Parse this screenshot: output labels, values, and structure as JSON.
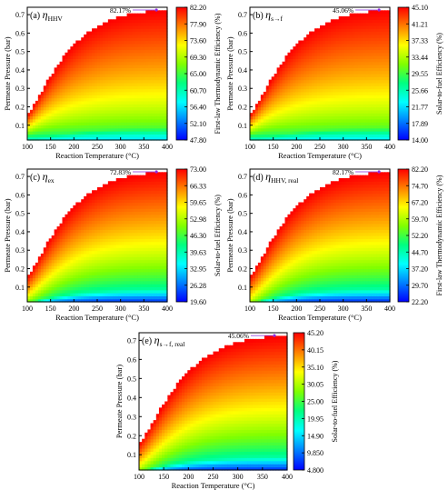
{
  "colors": {
    "region_edge": "#ffffff",
    "annotation": "#8a2be2",
    "gradient_stops": [
      "#0000ff",
      "#0080ff",
      "#00ffff",
      "#00ff80",
      "#80ff00",
      "#ffff00",
      "#ff8000",
      "#ff0000"
    ]
  },
  "chart_data": [
    {
      "type": "heatmap",
      "panel": "(a)",
      "symbol": "η",
      "subscript": "HHV",
      "xlabel": "Reaction Temperature (°C)",
      "ylabel": "Permeate Pressure (bar)",
      "xlim": [
        100,
        400
      ],
      "ylim": [
        0.02,
        0.74
      ],
      "xticks": [
        "100",
        "150",
        "200",
        "250",
        "300",
        "350",
        "400"
      ],
      "yticks": [
        "0.1",
        "0.2",
        "0.3",
        "0.4",
        "0.5",
        "0.6",
        "0.7"
      ],
      "colorbar_label": "First-law Thermodynamic Efficiency (%)",
      "colorbar_ticks": [
        "82.20",
        "77.90",
        "73.60",
        "69.30",
        "65.00",
        "60.70",
        "56.40",
        "52.10",
        "47.80"
      ],
      "colorbar_range": [
        47.8,
        82.2
      ],
      "max_label": "82.17%",
      "max_point": {
        "x": 330,
        "y": 0.73
      },
      "low_corner_value": 47.8,
      "top_edge_value": 82.2,
      "bottom_edge_value": 55
    },
    {
      "type": "heatmap",
      "panel": "(b)",
      "symbol": "η",
      "subscript": "s→f",
      "xlabel": "Reaction Temperature (°C)",
      "ylabel": "Permeate Pressure (bar)",
      "xlim": [
        100,
        400
      ],
      "ylim": [
        0.02,
        0.74
      ],
      "xticks": [
        "100",
        "150",
        "200",
        "250",
        "300",
        "350",
        "400"
      ],
      "yticks": [
        "0.1",
        "0.2",
        "0.3",
        "0.4",
        "0.5",
        "0.6",
        "0.7"
      ],
      "colorbar_label": "Solar-to-fuel Efficiency (%)",
      "colorbar_ticks": [
        "45.10",
        "41.21",
        "37.33",
        "33.44",
        "29.55",
        "25.66",
        "21.77",
        "17.89",
        "14.00"
      ],
      "colorbar_range": [
        14.0,
        45.1
      ],
      "max_label": "45.06%",
      "max_point": {
        "x": 330,
        "y": 0.73
      },
      "low_corner_value": 14.0,
      "top_edge_value": 45.1,
      "bottom_edge_value": 21.0
    },
    {
      "type": "heatmap",
      "panel": "(c)",
      "symbol": "η",
      "subscript": "ex",
      "xlabel": "Reaction Temperature (°C)",
      "ylabel": "Permeate Pressure (bar)",
      "xlim": [
        100,
        400
      ],
      "ylim": [
        0.02,
        0.74
      ],
      "xticks": [
        "100",
        "150",
        "200",
        "250",
        "300",
        "350",
        "400"
      ],
      "yticks": [
        "0.1",
        "0.2",
        "0.3",
        "0.4",
        "0.5",
        "0.6",
        "0.7"
      ],
      "colorbar_label": "Solar-to-fuel Efficiency (%)",
      "colorbar_ticks": [
        "73.00",
        "66.33",
        "59.65",
        "52.98",
        "46.30",
        "39.63",
        "32.95",
        "26.28",
        "19.60"
      ],
      "colorbar_range": [
        19.6,
        73.0
      ],
      "max_label": "72.83%",
      "max_point": {
        "x": 330,
        "y": 0.73
      },
      "low_corner_value": 40.0,
      "top_edge_value": 73.0,
      "bottom_edge_value": 20.0
    },
    {
      "type": "heatmap",
      "panel": "(d)",
      "symbol": "η",
      "subscript": "HHV, real",
      "xlabel": "Reaction Temperature (°C)",
      "ylabel": "Permeate Pressure (bar)",
      "xlim": [
        100,
        400
      ],
      "ylim": [
        0.02,
        0.74
      ],
      "xticks": [
        "100",
        "150",
        "200",
        "250",
        "300",
        "350",
        "400"
      ],
      "yticks": [
        "0.1",
        "0.2",
        "0.3",
        "0.4",
        "0.5",
        "0.6",
        "0.7"
      ],
      "colorbar_label": "First-law Thermodynamic Efficiency (%)",
      "colorbar_ticks": [
        "82.20",
        "74.70",
        "67.20",
        "59.70",
        "52.20",
        "44.70",
        "37.20",
        "29.70",
        "22.20"
      ],
      "colorbar_range": [
        22.2,
        82.2
      ],
      "max_label": "82.17%",
      "max_point": {
        "x": 330,
        "y": 0.73
      },
      "low_corner_value": 50.0,
      "top_edge_value": 82.2,
      "bottom_edge_value": 22.2
    },
    {
      "type": "heatmap",
      "panel": "(e)",
      "symbol": "η",
      "subscript": "s→f, real",
      "xlabel": "Reaction Temperature (°C)",
      "ylabel": "Permeate Pressure (bar)",
      "xlim": [
        100,
        400
      ],
      "ylim": [
        0.02,
        0.74
      ],
      "xticks": [
        "100",
        "150",
        "200",
        "250",
        "300",
        "350",
        "400"
      ],
      "yticks": [
        "0.1",
        "0.2",
        "0.3",
        "0.4",
        "0.5",
        "0.6",
        "0.7"
      ],
      "colorbar_label": "Solar-to-fuel Efficiency (%)",
      "colorbar_ticks": [
        "45.20",
        "40.15",
        "35.10",
        "30.05",
        "25.00",
        "19.95",
        "14.90",
        "9.850",
        "4.800"
      ],
      "colorbar_range": [
        4.8,
        45.2
      ],
      "max_label": "45.06%",
      "max_point": {
        "x": 330,
        "y": 0.73
      },
      "low_corner_value": 22.0,
      "top_edge_value": 45.2,
      "bottom_edge_value": 4.8
    }
  ]
}
